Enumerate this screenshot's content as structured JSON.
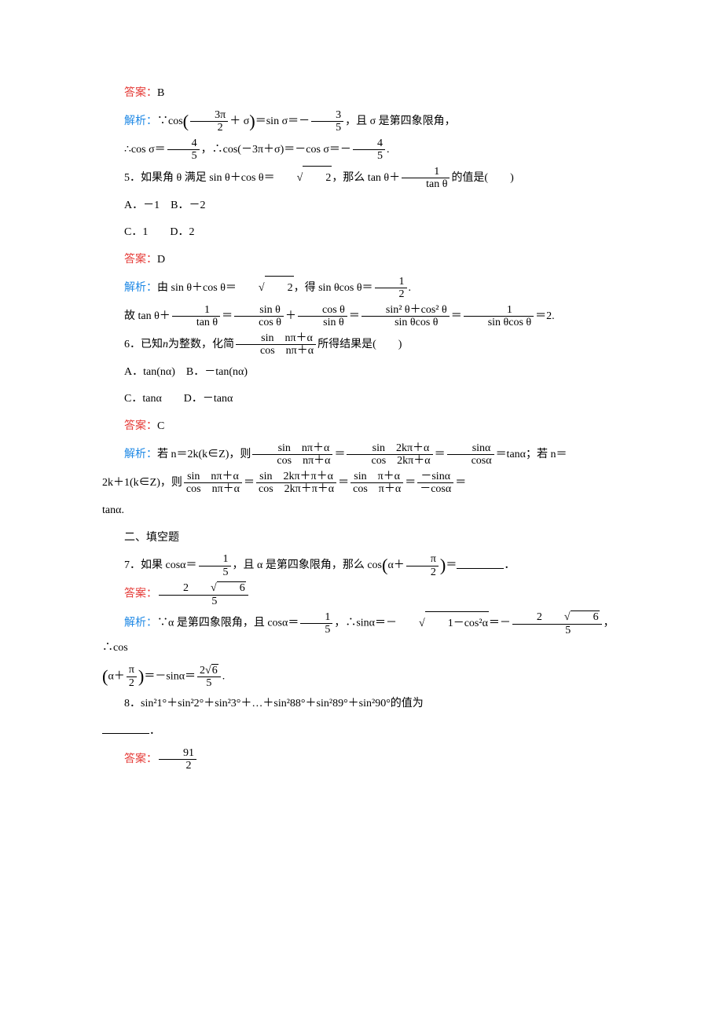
{
  "text_color": "#000000",
  "answer_color": "#e53935",
  "explain_color": "#1e88e5",
  "background_color": "#ffffff",
  "base_fontsize": 14,
  "font_family": "SimSun",
  "labels": {
    "answer": "答案：",
    "explain": "解析：",
    "section2": "二、填空题"
  },
  "q4": {
    "answer": "B",
    "explain1_a": "∵cos",
    "explain1_paren_num": "3π",
    "explain1_paren_den": "2",
    "explain1_b": "＋ σ",
    "explain1_c": "＝sin σ＝－",
    "explain1_frac_num": "3",
    "explain1_frac_den": "5",
    "explain1_d": "，且 σ 是第四象限角，",
    "explain2_a": "∴cos σ＝",
    "explain2_frac1_num": "4",
    "explain2_frac1_den": "5",
    "explain2_b": "，∴cos(－3π＋σ)＝－cos σ＝－",
    "explain2_frac2_num": "4",
    "explain2_frac2_den": "5",
    "explain2_c": "."
  },
  "q5": {
    "stem_a": "5．如果角 θ 满足 sin θ＋cos θ＝",
    "stem_rad": "2",
    "stem_b": "，那么 tan θ＋",
    "stem_frac_num": "1",
    "stem_frac_den": "tan θ",
    "stem_c": "的值是(　　)",
    "optA": "A．－1",
    "optB": "B．－2",
    "optC": "C．1",
    "optD": "D．2",
    "answer": "D",
    "explain1_a": "由 sin θ＋cos θ＝",
    "explain1_rad": "2",
    "explain1_b": "，得 sin θcos θ＝",
    "explain1_frac_num": "1",
    "explain1_frac_den": "2",
    "explain1_c": "."
  },
  "q5_line2": {
    "a": "故 tan θ＋",
    "f1_num": "1",
    "f1_den": "tan θ",
    "f2_num": "sin θ",
    "f2_den": "cos θ",
    "f3_num": "cos θ",
    "f3_den": "sin θ",
    "f4_num": "sin² θ＋cos² θ",
    "f4_den": "sin θcos θ",
    "f5_num": "1",
    "f5_den": "sin θcos θ",
    "tail": "＝2."
  },
  "q6": {
    "stem_a": "6．已知",
    "stem_n": "n",
    "stem_b": "为整数，化简",
    "stem_frac_num": "sin　nπ＋α",
    "stem_frac_den": "cos　nπ＋α",
    "stem_c": "所得结果是(　　)",
    "optA": "A．tan(nα)",
    "optB": "B．－tan(nα)",
    "optC": "C．tanα",
    "optD": "D．－tanα",
    "answer": "C",
    "explain_a": "若 n＝2k(k∈",
    "explain_Z": "Z",
    "explain_b": ")，则",
    "e_f1_num": "sin　nπ＋α",
    "e_f1_den": "cos　nπ＋α",
    "e_f2_num": "sin　2kπ＋α",
    "e_f2_den": "cos　2kπ＋α",
    "e_f3_num": "sinα",
    "e_f3_den": "cosα",
    "explain_c": "＝tanα；若 n＝",
    "explain2_a": "2k＋1(k∈",
    "explain2_b": ")，则",
    "e2_f1_num": "sin　nπ＋α",
    "e2_f1_den": "cos　nπ＋α",
    "e2_f2_num": "sin　2kπ＋π＋α",
    "e2_f2_den": "cos　2kπ＋π＋α",
    "e2_f3_num": "sin　π＋α",
    "e2_f3_den": "cos　π＋α",
    "e2_f4_num": "－sinα",
    "e2_f4_den": "－cosα",
    "explain2_c": "＝",
    "explain3": "tanα."
  },
  "q7": {
    "stem_a": "7．如果 cosα＝",
    "stem_f1_num": "1",
    "stem_f1_den": "5",
    "stem_b": "，且 α 是第四象限角，那么 cos",
    "stem_paren_a": "α＋",
    "stem_paren_num": "π",
    "stem_paren_den": "2",
    "stem_c": "＝",
    "ans_num": "2√6",
    "ans_num_rad": "6",
    "ans_num_coef": "2",
    "ans_den": "5",
    "explain_a": "∵α 是第四象限角，且 cosα＝",
    "explain_f1_num": "1",
    "explain_f1_den": "5",
    "explain_b": "，∴sinα＝－",
    "explain_rad": "1－cos²α",
    "explain_c": "＝－",
    "explain_f2_num_coef": "2",
    "explain_f2_num_rad": "6",
    "explain_f2_den": "5",
    "explain_d": "，∴cos",
    "explain2_a": "α＋",
    "explain2_num": "π",
    "explain2_den": "2",
    "explain2_b": "＝－sinα＝",
    "explain2_f_num_coef": "2",
    "explain2_f_num_rad": "6",
    "explain2_f_den": "5",
    "explain2_c": "."
  },
  "q8": {
    "stem": "8．sin²1°＋sin²2°＋sin²3°＋…＋sin²88°＋sin²89°＋sin²90°的值为",
    "ans_num": "91",
    "ans_den": "2"
  }
}
